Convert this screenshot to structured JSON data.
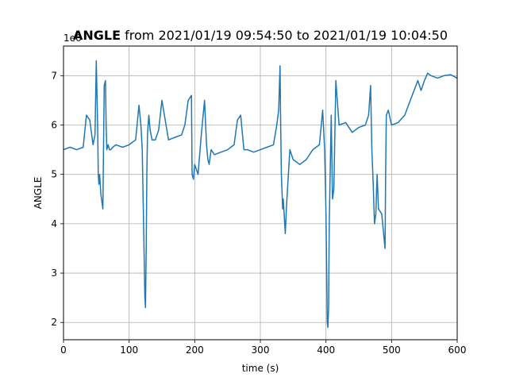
{
  "chart_data": {
    "type": "line",
    "title": {
      "bold": "ANGLE",
      "rest": " from 2021/01/19 09:54:50 to 2021/01/19 10:04:50"
    },
    "xlabel": "time (s)",
    "ylabel": "ANGLE",
    "offset_label": "1e6",
    "xlim": [
      0,
      600
    ],
    "ylim": [
      1.65,
      7.6
    ],
    "xticks": [
      0,
      100,
      200,
      300,
      400,
      500,
      600
    ],
    "yticks": [
      2,
      3,
      4,
      5,
      6,
      7
    ],
    "grid": true,
    "line_color": "#1f77b4",
    "series": [
      {
        "x": [
          0,
          10,
          20,
          30,
          35,
          40,
          45,
          48,
          50,
          52,
          53,
          54,
          55,
          57,
          58,
          60,
          62,
          64,
          65,
          66,
          68,
          70,
          72,
          75,
          80,
          90,
          100,
          110,
          115,
          118,
          120,
          122,
          124,
          125,
          126,
          127,
          128,
          130,
          132,
          135,
          140,
          145,
          150,
          160,
          170,
          180,
          185,
          190,
          195,
          196,
          198,
          200,
          205,
          210,
          215,
          218,
          220,
          222,
          225,
          230,
          240,
          250,
          260,
          265,
          270,
          275,
          280,
          290,
          300,
          310,
          320,
          325,
          328,
          330,
          331,
          332,
          334,
          335,
          338,
          340,
          345,
          350,
          360,
          370,
          380,
          390,
          395,
          398,
          400,
          402,
          403,
          404,
          405,
          408,
          410,
          412,
          415,
          420,
          430,
          440,
          450,
          460,
          465,
          468,
          470,
          472,
          474,
          476,
          478,
          480,
          485,
          490,
          491,
          492,
          495,
          500,
          510,
          520,
          530,
          540,
          545,
          550,
          555,
          560,
          570,
          580,
          590,
          600
        ],
        "values": [
          5.5,
          5.55,
          5.5,
          5.55,
          6.2,
          6.1,
          5.6,
          5.8,
          7.3,
          6.0,
          5.0,
          4.8,
          5.0,
          4.6,
          4.5,
          4.3,
          6.8,
          6.9,
          6.0,
          5.5,
          5.6,
          5.5,
          5.5,
          5.55,
          5.6,
          5.55,
          5.6,
          5.7,
          6.4,
          6.0,
          5.5,
          4.0,
          2.5,
          2.3,
          3.5,
          5.0,
          5.8,
          6.2,
          5.9,
          5.7,
          5.7,
          5.9,
          6.5,
          5.7,
          5.75,
          5.8,
          6.0,
          6.5,
          6.6,
          5.0,
          4.9,
          5.2,
          5.0,
          5.8,
          6.5,
          5.6,
          5.3,
          5.2,
          5.5,
          5.4,
          5.45,
          5.5,
          5.6,
          6.1,
          6.2,
          5.5,
          5.5,
          5.45,
          5.5,
          5.55,
          5.6,
          6.0,
          6.3,
          7.2,
          6.0,
          5.0,
          4.3,
          4.5,
          3.8,
          4.4,
          5.5,
          5.3,
          5.2,
          5.3,
          5.5,
          5.6,
          6.3,
          5.5,
          4.2,
          2.0,
          1.9,
          2.3,
          4.0,
          6.2,
          4.5,
          4.7,
          6.9,
          6.0,
          6.05,
          5.85,
          5.95,
          6.0,
          6.2,
          6.8,
          5.5,
          4.8,
          4.0,
          4.2,
          5.0,
          4.3,
          4.2,
          3.5,
          5.1,
          6.2,
          6.3,
          6.0,
          6.05,
          6.2,
          6.55,
          6.9,
          6.7,
          6.9,
          7.05,
          7.0,
          6.95,
          7.0,
          7.02,
          6.95
        ]
      }
    ]
  }
}
